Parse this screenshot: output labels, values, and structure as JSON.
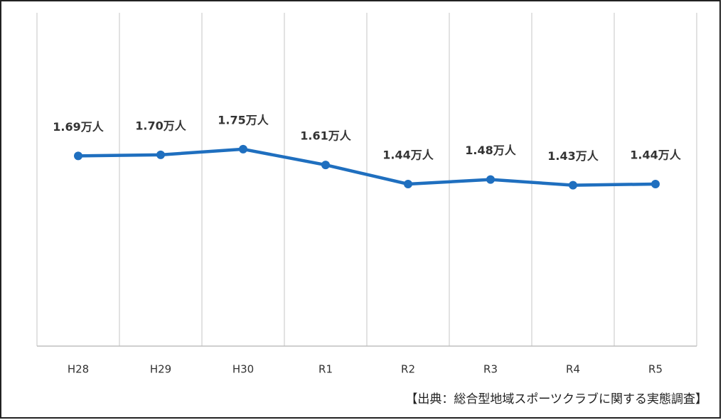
{
  "chart_data": {
    "type": "line",
    "categories": [
      "H28",
      "H29",
      "H30",
      "R1",
      "R2",
      "R3",
      "R4",
      "R5"
    ],
    "series": [
      {
        "color": "#1f6fbf",
        "values": [
          1.69,
          1.7,
          1.75,
          1.61,
          1.44,
          1.48,
          1.43,
          1.44
        ],
        "value_labels": [
          "1.69万人",
          "1.70万人",
          "1.75万人",
          "1.61万人",
          "1.44万人",
          "1.48万人",
          "1.43万人",
          "1.44万人"
        ]
      }
    ],
    "ylim": [
      0,
      3
    ],
    "grid": true,
    "source": "【出典：総合型地域スポーツクラブに関する実態調査】"
  }
}
